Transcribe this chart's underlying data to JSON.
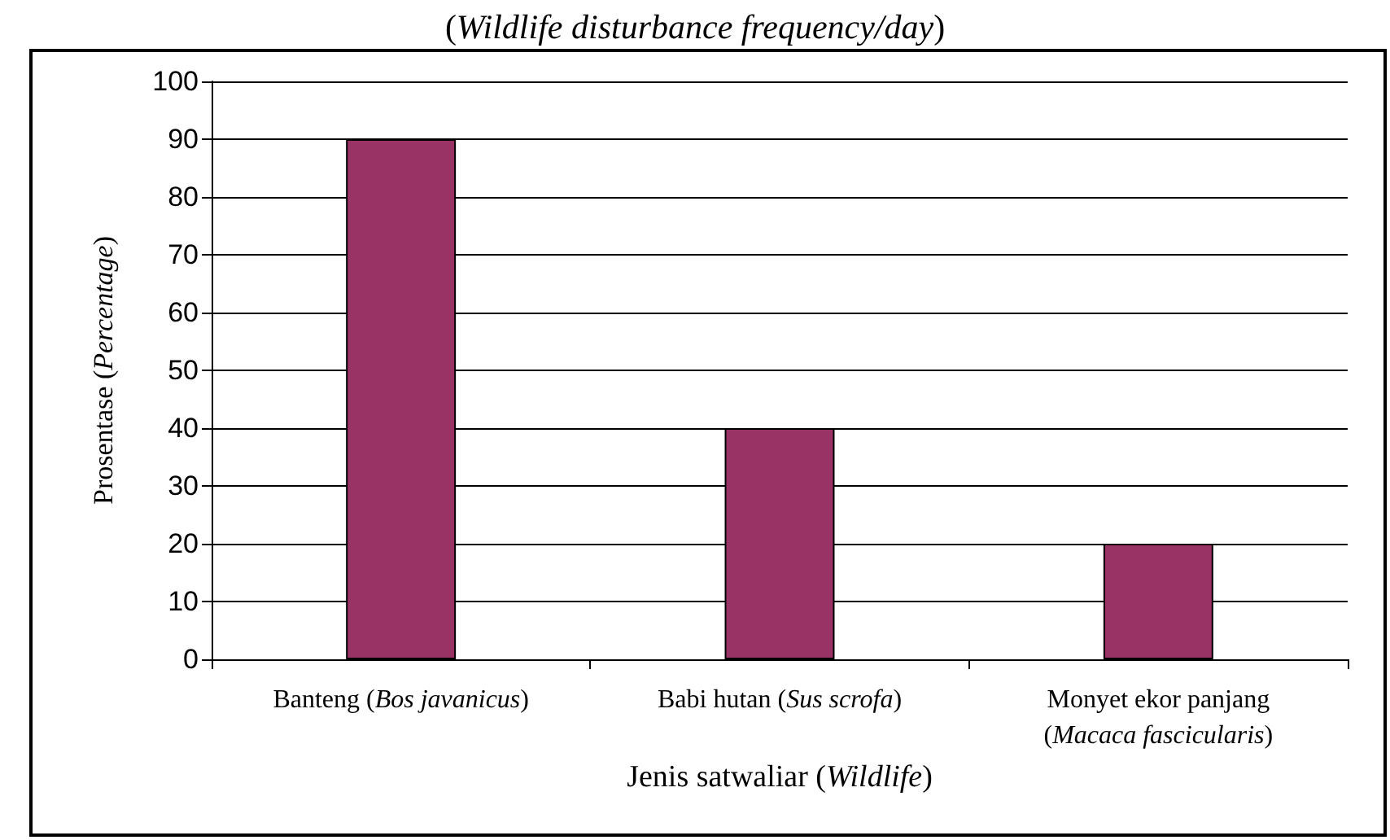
{
  "chart_data": {
    "type": "bar",
    "title": "(Wildlife disturbance frequency/day)",
    "xlabel": "Jenis satwaliar (Wildlife)",
    "ylabel": "Prosentase (Percentage)",
    "categories": [
      "Banteng (Bos javanicus)",
      "Babi hutan (Sus scrofa)",
      "Monyet ekor panjang\n(Macaca fascicularis)"
    ],
    "values": [
      90,
      40,
      20
    ],
    "color": "#993366",
    "ylim": [
      0,
      100
    ],
    "yticks": [
      0,
      10,
      20,
      30,
      40,
      50,
      60,
      70,
      80,
      90,
      100
    ],
    "grid": "y"
  }
}
